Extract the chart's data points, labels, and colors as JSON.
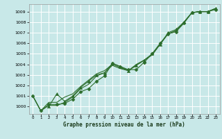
{
  "xlabel": "Graphe pression niveau de la mer (hPa)",
  "xlim": [
    -0.5,
    23.5
  ],
  "ylim": [
    999.3,
    1009.7
  ],
  "yticks": [
    1000,
    1001,
    1002,
    1003,
    1004,
    1005,
    1006,
    1007,
    1008,
    1009
  ],
  "xticks": [
    0,
    1,
    2,
    3,
    4,
    5,
    6,
    7,
    8,
    9,
    10,
    11,
    12,
    13,
    14,
    15,
    16,
    17,
    18,
    19,
    20,
    21,
    22,
    23
  ],
  "xtick_labels": [
    "0",
    "1",
    "2",
    "3",
    "4",
    "5",
    "6",
    "7",
    "8",
    "9",
    "10",
    "11",
    "12",
    "13",
    "14",
    "15",
    "16",
    "17",
    "18",
    "19",
    "20",
    "21",
    "22",
    "23"
  ],
  "background_color": "#c8e8e8",
  "grid_color": "#ffffff",
  "line_color": "#2d6e2d",
  "series": [
    {
      "x": [
        0,
        1,
        2,
        3,
        4,
        5,
        6,
        7,
        8,
        9,
        10,
        11,
        12,
        13,
        14,
        15,
        16,
        17,
        18,
        19,
        20,
        21,
        22,
        23
      ],
      "y": [
        1001.0,
        999.6,
        1000.2,
        1000.2,
        1000.3,
        1000.7,
        1001.4,
        1001.7,
        1002.4,
        1002.9,
        1004.1,
        1003.8,
        1003.5,
        1003.5,
        1004.2,
        1005.0,
        1006.0,
        1006.9,
        1007.1,
        1007.9,
        1008.9,
        1009.0,
        1009.0,
        1009.2
      ],
      "marker": "D",
      "markersize": 2.5
    },
    {
      "x": [
        0,
        1,
        2,
        3,
        4,
        5,
        6,
        7,
        8,
        9,
        10,
        11,
        12,
        13,
        14,
        15,
        16,
        17,
        18,
        19,
        20,
        21,
        22,
        23
      ],
      "y": [
        1001.0,
        999.6,
        1000.1,
        1000.1,
        1000.4,
        1000.9,
        1001.7,
        1002.1,
        1002.9,
        1003.2,
        1003.9,
        1003.6,
        1003.4,
        1003.9,
        1004.4,
        1004.9,
        1005.9,
        1006.9,
        1007.1,
        1008.0,
        1008.9,
        1009.0,
        1009.0,
        1009.3
      ],
      "marker": null,
      "markersize": 0
    },
    {
      "x": [
        0,
        1,
        2,
        3,
        4,
        5,
        6,
        7,
        8,
        9,
        10,
        11,
        12,
        13,
        14,
        15,
        16,
        17,
        18,
        19,
        20,
        21,
        22,
        23
      ],
      "y": [
        1001.0,
        999.6,
        1000.4,
        1000.4,
        1000.9,
        1001.2,
        1001.9,
        1002.5,
        1003.1,
        1003.4,
        1004.0,
        1003.7,
        1003.4,
        1004.0,
        1004.4,
        1004.9,
        1005.9,
        1006.9,
        1007.2,
        1008.0,
        1008.9,
        1009.0,
        1009.0,
        1009.3
      ],
      "marker": null,
      "markersize": 0
    },
    {
      "x": [
        2,
        3,
        4,
        5,
        6,
        7,
        8,
        9,
        10,
        11,
        12,
        13,
        14,
        15,
        16,
        17,
        18,
        19,
        20,
        21,
        22,
        23
      ],
      "y": [
        1000.0,
        1001.2,
        1000.5,
        1001.0,
        1001.8,
        1002.4,
        1003.0,
        1003.2,
        1004.1,
        1003.8,
        1003.4,
        1003.9,
        1004.4,
        1005.0,
        1005.9,
        1007.0,
        1007.3,
        1008.0,
        1008.9,
        1009.0,
        1009.0,
        1009.3
      ],
      "marker": "^",
      "markersize": 3.0
    }
  ]
}
